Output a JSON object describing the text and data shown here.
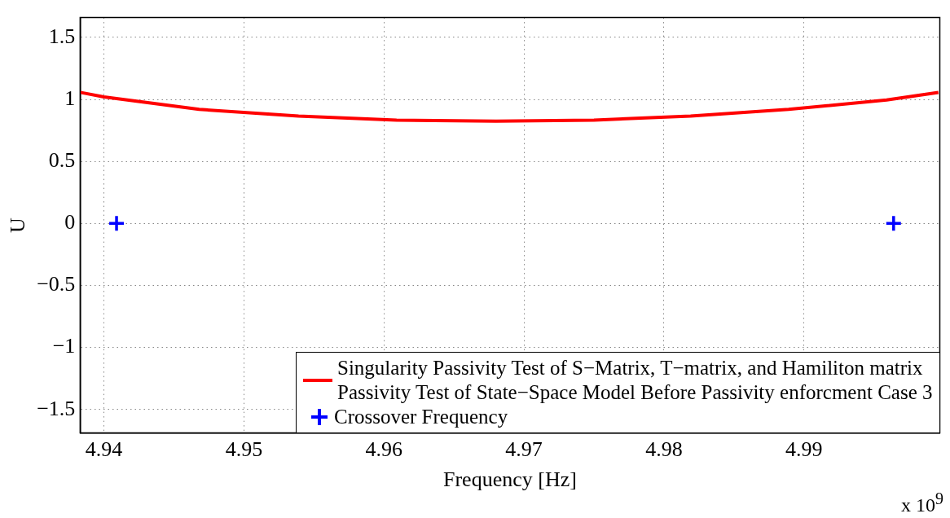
{
  "chart_data": {
    "type": "line",
    "xlabel": "Frequency [Hz]",
    "ylabel": "U",
    "annotations": [
      "x 10$^{9}$"
    ],
    "xlim": [
      4.9383,
      4.9997
    ],
    "xticks": [
      4.94,
      4.95,
      4.96,
      4.97,
      4.98,
      4.99
    ],
    "ylim": [
      -1.69,
      1.66
    ],
    "yticks": [
      -1.5,
      -1,
      -0.5,
      0,
      0.5,
      1,
      1.5
    ],
    "grid": true,
    "legend": "bottom right",
    "series": [
      {
        "name": "Singularity Passivity Test of S−Matrix, T−matrix, and Hamiliton matrix\nPassivity Test of State−Space Model Before Passivity enforcment Case 3",
        "type": "line",
        "color": "#ff0000",
        "line_style": "solid",
        "marker": "none",
        "x": [
          4.9383,
          4.94,
          4.9468,
          4.9539,
          4.9609,
          4.968,
          4.975,
          4.9819,
          4.9889,
          4.9959,
          4.9996
        ],
        "values": [
          1.057,
          1.02,
          0.92,
          0.866,
          0.833,
          0.825,
          0.833,
          0.866,
          0.92,
          0.995,
          1.057
        ]
      },
      {
        "name": "Crossover Frequency",
        "type": "scatter",
        "color": "#0000ff",
        "marker": "cross",
        "x": [
          4.9409,
          4.9964
        ],
        "values": [
          0,
          0
        ]
      }
    ]
  }
}
